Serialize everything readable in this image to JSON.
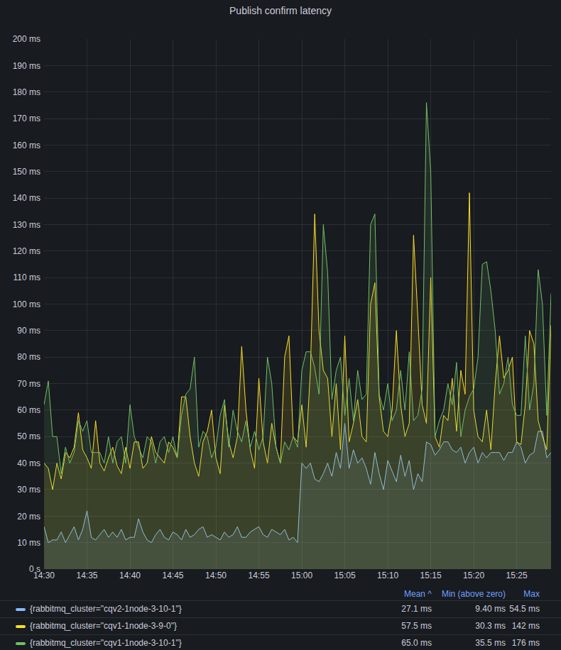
{
  "chart_data": {
    "type": "line",
    "title": "Publish confirm latency",
    "categories": [
      "14:30",
      null,
      null,
      null,
      null,
      null,
      null,
      null,
      null,
      null,
      "14:35",
      null,
      null,
      null,
      null,
      null,
      null,
      null,
      null,
      null,
      "14:40",
      null,
      null,
      null,
      null,
      null,
      null,
      null,
      null,
      null,
      "14:45",
      null,
      null,
      null,
      null,
      null,
      null,
      null,
      null,
      null,
      "14:50",
      null,
      null,
      null,
      null,
      null,
      null,
      null,
      null,
      null,
      "14:55",
      null,
      null,
      null,
      null,
      null,
      null,
      null,
      null,
      null,
      "15:00",
      null,
      null,
      null,
      null,
      null,
      null,
      null,
      null,
      null,
      "15:05",
      null,
      null,
      null,
      null,
      null,
      null,
      null,
      null,
      null,
      "15:10",
      null,
      null,
      null,
      null,
      null,
      null,
      null,
      null,
      null,
      "15:15",
      null,
      null,
      null,
      null,
      null,
      null,
      null,
      null,
      null,
      "15:20",
      null,
      null,
      null,
      null,
      null,
      null,
      null,
      null,
      null,
      "15:25",
      null,
      null,
      null,
      null,
      null,
      null,
      null,
      null
    ],
    "ylim": [
      0,
      200
    ],
    "yticks": [
      {
        "value": 0,
        "label": "0 s"
      },
      {
        "value": 10,
        "label": "10 ms"
      },
      {
        "value": 20,
        "label": "20 ms"
      },
      {
        "value": 30,
        "label": "30 ms"
      },
      {
        "value": 40,
        "label": "40 ms"
      },
      {
        "value": 50,
        "label": "50 ms"
      },
      {
        "value": 60,
        "label": "60 ms"
      },
      {
        "value": 70,
        "label": "70 ms"
      },
      {
        "value": 80,
        "label": "80 ms"
      },
      {
        "value": 90,
        "label": "90 ms"
      },
      {
        "value": 100,
        "label": "100 ms"
      },
      {
        "value": 110,
        "label": "110 ms"
      },
      {
        "value": 120,
        "label": "120 ms"
      },
      {
        "value": 130,
        "label": "130 ms"
      },
      {
        "value": 140,
        "label": "140 ms"
      },
      {
        "value": 150,
        "label": "150 ms"
      },
      {
        "value": 160,
        "label": "160 ms"
      },
      {
        "value": 170,
        "label": "170 ms"
      },
      {
        "value": 180,
        "label": "180 ms"
      },
      {
        "value": 190,
        "label": "190 ms"
      },
      {
        "value": 200,
        "label": "200 ms"
      }
    ],
    "grid": true,
    "legend": "bottom",
    "stats_columns": [
      "Mean ^",
      "Min (above zero)",
      "Max"
    ],
    "series": [
      {
        "name": "{rabbitmq_cluster=\"cqv2-1node-3-10-1\"}",
        "color": "#8ab8ff",
        "stats": [
          "27.1 ms",
          "9.40 ms",
          "54.5 ms"
        ],
        "values": [
          16,
          10,
          11,
          11,
          14,
          10,
          13,
          16,
          11,
          15,
          22,
          12,
          11,
          13,
          15,
          12,
          14,
          12,
          15,
          11,
          12,
          12,
          19,
          14,
          11,
          10,
          13,
          15,
          12,
          11,
          14,
          13,
          11,
          15,
          12,
          13,
          15,
          16,
          12,
          13,
          12,
          11,
          14,
          12,
          13,
          16,
          12,
          12,
          14,
          15,
          16,
          13,
          12,
          15,
          14,
          13,
          15,
          11,
          12,
          10,
          40,
          38,
          40,
          34,
          33,
          36,
          40,
          35,
          44,
          38,
          55,
          38,
          45,
          40,
          42,
          38,
          32,
          44,
          36,
          30,
          41,
          37,
          33,
          43,
          35,
          41,
          30,
          36,
          33,
          48,
          47,
          43,
          45,
          48,
          48,
          45,
          44,
          46,
          40,
          44,
          46,
          40,
          44,
          42,
          44,
          44,
          44,
          41,
          44,
          44,
          48,
          46,
          40,
          43,
          44,
          52,
          52,
          42,
          44
        ]
      },
      {
        "name": "{rabbitmq_cluster=\"cqv1-1node-3-9-0\"}",
        "color": "#fade2a",
        "stats": [
          "57.5 ms",
          "30.3 ms",
          "142 ms"
        ],
        "values": [
          40,
          38,
          30,
          40,
          34,
          44,
          42,
          46,
          59,
          45,
          42,
          38,
          56,
          40,
          37,
          42,
          46,
          39,
          36,
          46,
          38,
          48,
          48,
          38,
          40,
          50,
          44,
          42,
          40,
          48,
          46,
          42,
          65,
          65,
          50,
          40,
          35,
          48,
          52,
          60,
          42,
          36,
          62,
          48,
          42,
          50,
          84,
          60,
          45,
          38,
          72,
          48,
          40,
          55,
          46,
          40,
          80,
          88,
          50,
          48,
          62,
          46,
          75,
          134,
          90,
          75,
          72,
          50,
          70,
          45,
          88,
          48,
          55,
          64,
          50,
          48,
          100,
          108,
          65,
          52,
          50,
          60,
          90,
          62,
          50,
          55,
          126,
          95,
          62,
          55,
          110,
          50,
          46,
          58,
          56,
          72,
          52,
          75,
          66,
          142,
          60,
          50,
          48,
          60,
          45,
          70,
          88,
          72,
          75,
          80,
          48,
          47,
          62,
          90,
          85,
          56,
          50,
          45,
          92
        ]
      },
      {
        "name": "{rabbitmq_cluster=\"cqv1-1node-3-10-1\"}",
        "color": "#73bf69",
        "stats": [
          "65.0 ms",
          "35.5 ms",
          "176 ms"
        ],
        "values": [
          62,
          71,
          50,
          50,
          36,
          46,
          40,
          44,
          56,
          52,
          56,
          44,
          44,
          44,
          40,
          50,
          40,
          48,
          50,
          40,
          62,
          50,
          46,
          42,
          50,
          48,
          40,
          48,
          50,
          44,
          50,
          42,
          58,
          66,
          68,
          80,
          46,
          52,
          50,
          42,
          46,
          58,
          64,
          46,
          60,
          52,
          48,
          56,
          46,
          52,
          45,
          50,
          80,
          70,
          46,
          40,
          48,
          45,
          50,
          46,
          75,
          82,
          82,
          76,
          66,
          130,
          112,
          64,
          75,
          80,
          58,
          72,
          56,
          75,
          64,
          66,
          130,
          134,
          66,
          60,
          70,
          56,
          60,
          75,
          60,
          82,
          56,
          58,
          68,
          176,
          150,
          50,
          56,
          60,
          70,
          62,
          78,
          50,
          60,
          65,
          68,
          80,
          115,
          116,
          105,
          90,
          66,
          70,
          80,
          62,
          58,
          58,
          88,
          60,
          70,
          113,
          100,
          58,
          104
        ]
      }
    ]
  }
}
